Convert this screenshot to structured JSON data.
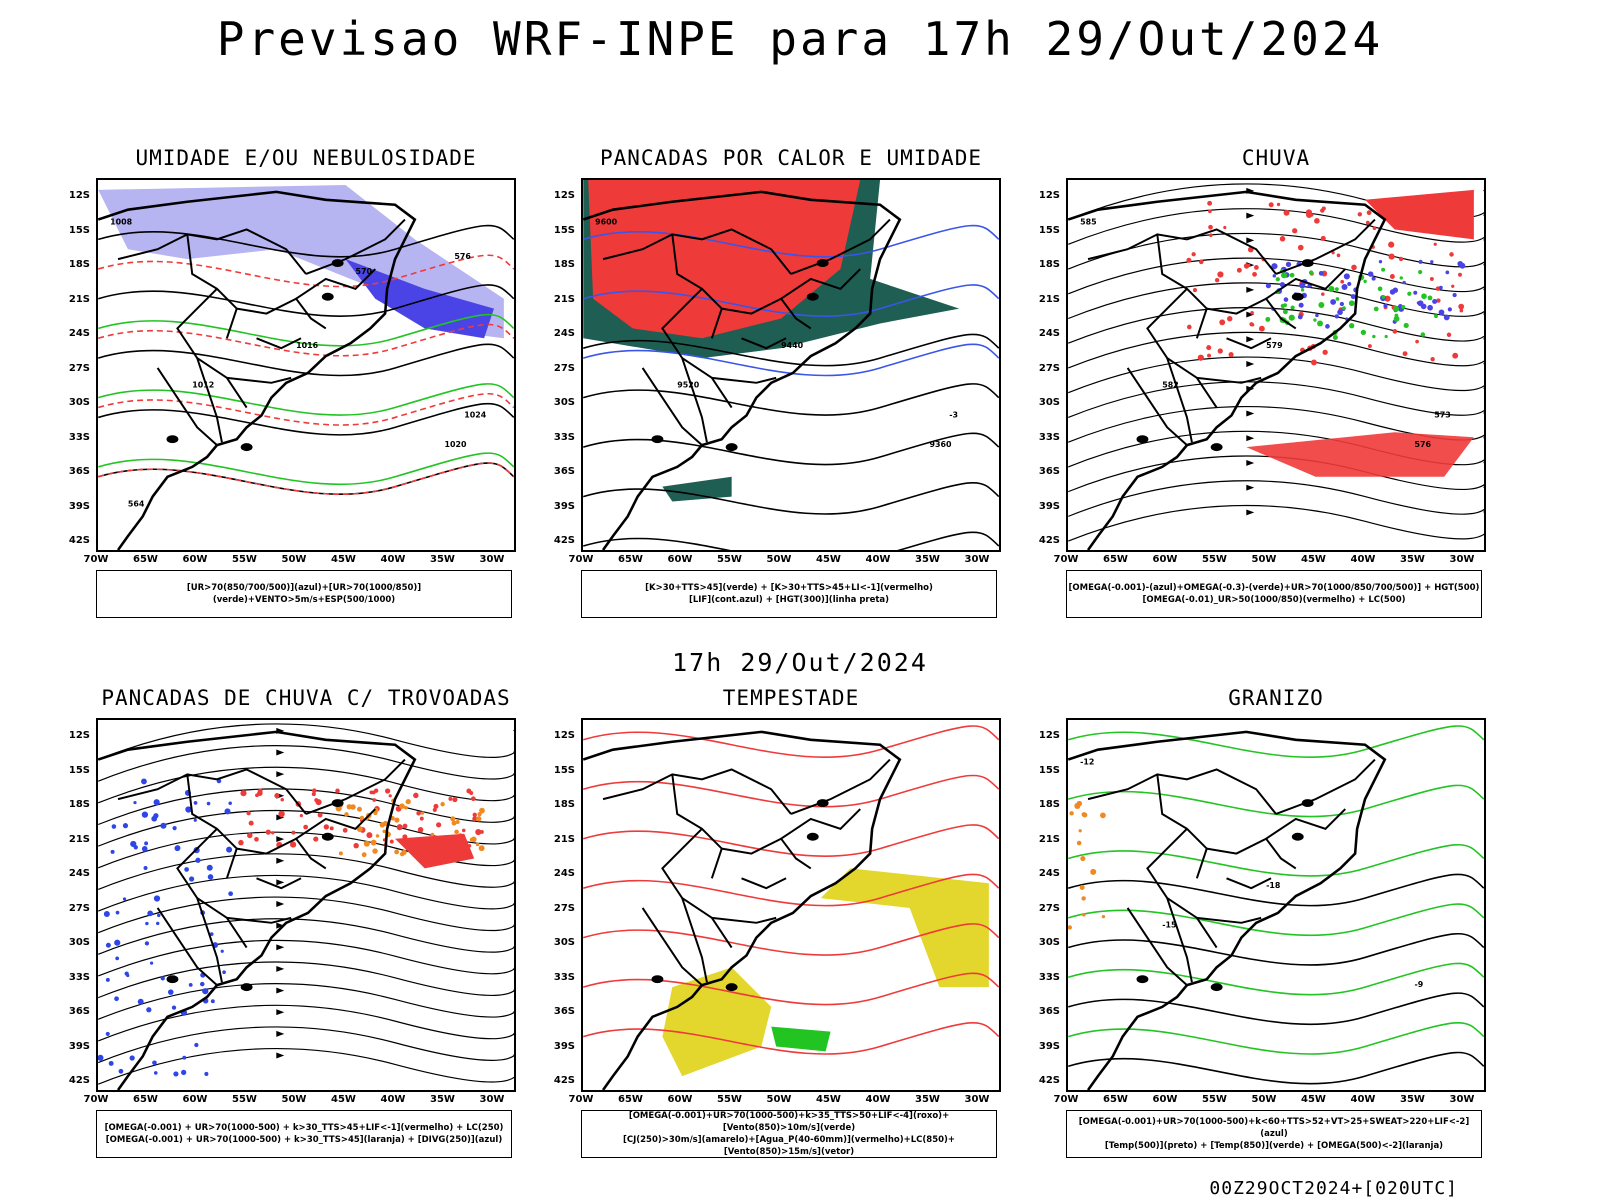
{
  "title": "Previsao WRF-INPE  para 17h 29/Out/2024",
  "middle_label": "17h 29/Out/2024",
  "footer": "00Z29OCT2024+[020UTC]",
  "lat_labels": [
    "12S",
    "15S",
    "18S",
    "21S",
    "24S",
    "27S",
    "30S",
    "33S",
    "36S",
    "39S",
    "42S"
  ],
  "lon_labels": [
    "70W",
    "65W",
    "60W",
    "55W",
    "50W",
    "45W",
    "40W",
    "35W",
    "30W"
  ],
  "colors": {
    "lavender": "#b7b4f2",
    "blue": "#4a44e6",
    "red": "#ef3a3a",
    "green": "#22c422",
    "darkgreen": "#1f5e52",
    "yellow": "#e3d62c",
    "orange": "#f08a20"
  },
  "panels": [
    {
      "title": "UMIDADE E/OU NEBULOSIDADE",
      "legend": [
        "[UR>70(850/700/500)](azul)+[UR>70(1000/850)](verde)+VENTO>5m/s+ESP(500/1000)"
      ],
      "labels": [
        "1008",
        "1012",
        "1016",
        "1020",
        "1024",
        "570",
        "576",
        "564"
      ]
    },
    {
      "title": "PANCADAS POR CALOR E UMIDADE",
      "legend": [
        "[K>30+TTS>45](verde) + [K>30+TTS>45+LI<-1](vermelho)",
        "[LIF](cont.azul) + [HGT(300)](linha preta)"
      ],
      "labels": [
        "9600",
        "9520",
        "9440",
        "9360",
        "-3"
      ]
    },
    {
      "title": "CHUVA",
      "legend": [
        "[OMEGA(-0.001)-(azul)+OMEGA(-0.3)-(verde)+UR>70(1000/850/700/500)] + HGT(500)",
        "[OMEGA(-0.01)_UR>50(1000/850)(vermelho) + LC(500)"
      ],
      "labels": [
        "585",
        "582",
        "579",
        "576",
        "573"
      ]
    },
    {
      "title": "PANCADAS DE CHUVA C/ TROVOADAS",
      "legend": [
        "[OMEGA(-0.001) + UR>70(1000-500) + k>30_TTS>45+LIF<-1](vermelho) + LC(250)",
        "[OMEGA(-0.001) + UR>70(1000-500) + k>30_TTS>45](laranja) + [DIVG(250)](azul)"
      ],
      "labels": []
    },
    {
      "title": "TEMPESTADE",
      "legend": [
        "[OMEGA(-0.001)+UR>70(1000-500)+k>35_TTS>50+LIF<-4](roxo)+[Vento(850)>10m/s](verde)",
        "[CJ(250)>30m/s](amarelo)+[Agua_P(40-60mm)](vermelho)+LC(850)+[Vento(850)>15m/s](vetor)"
      ],
      "labels": []
    },
    {
      "title": "GRANIZO",
      "legend": [
        "[OMEGA(-0.001)+UR>70(1000-500)+k<60+TTS>52+VT>25+SWEAT>220+LIF<-2](azul)",
        "[Temp(500)](preto) + [Temp(850)](verde) + [OMEGA(500)<-2](laranja)"
      ],
      "labels": [
        "-12",
        "-15",
        "-18",
        "-9"
      ]
    }
  ]
}
